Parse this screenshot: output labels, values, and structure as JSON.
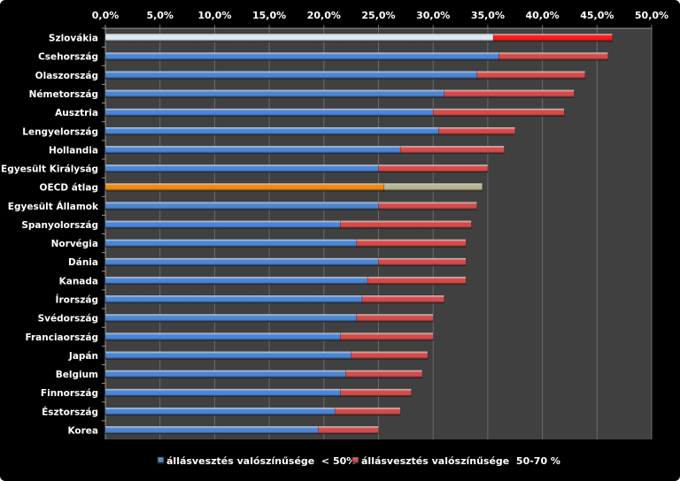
{
  "chart_data": {
    "type": "bar",
    "orientation": "horizontal",
    "stacked": true,
    "xlim": [
      0,
      50
    ],
    "x_ticks": [
      "0,0%",
      "5,0%",
      "10,0%",
      "15,0%",
      "20,0%",
      "25,0%",
      "30,0%",
      "35,0%",
      "40,0%",
      "45,0%",
      "50,0%"
    ],
    "x_axis_position": "top",
    "grid": true,
    "legend_position": "bottom",
    "categories": [
      "Szlovákia",
      "Csehország",
      "Olaszország",
      "Németország",
      "Ausztria",
      "Lengyelország",
      "Hollandia",
      "Egyesült Királyság",
      "OECD átlag",
      "Egyesült Államok",
      "Spanyolország",
      "Norvégia",
      "Dánia",
      "Kanada",
      "Írország",
      "Svédország",
      "Franciaország",
      "Japán",
      "Belgium",
      "Finnország",
      "Észtország",
      "Korea"
    ],
    "series": [
      {
        "name": "állásvesztés valószínűsége  < 50%",
        "color": "#4a86d8",
        "values": [
          35.5,
          36.0,
          34.0,
          31.0,
          30.0,
          30.5,
          27.0,
          25.0,
          25.5,
          25.0,
          21.5,
          23.0,
          25.0,
          24.0,
          23.5,
          23.0,
          21.5,
          22.5,
          22.0,
          21.5,
          21.0,
          19.5
        ]
      },
      {
        "name": "állásvesztés valószínűsége  50-70 %",
        "color": "#d84a4a",
        "values": [
          10.9,
          10.0,
          9.9,
          11.9,
          12.0,
          7.0,
          9.5,
          10.0,
          9.0,
          9.0,
          12.0,
          10.0,
          8.0,
          9.0,
          7.5,
          7.0,
          8.5,
          7.0,
          7.0,
          6.5,
          6.0,
          5.5
        ]
      }
    ],
    "highlight_colors": {
      "Szlovákia": [
        "#dbe9f7",
        "#ff1a1a"
      ],
      "OECD átlag": [
        "#f08a10",
        "#b8b48c"
      ]
    },
    "background_color": "#000000",
    "plot_area_color": "#404040"
  }
}
